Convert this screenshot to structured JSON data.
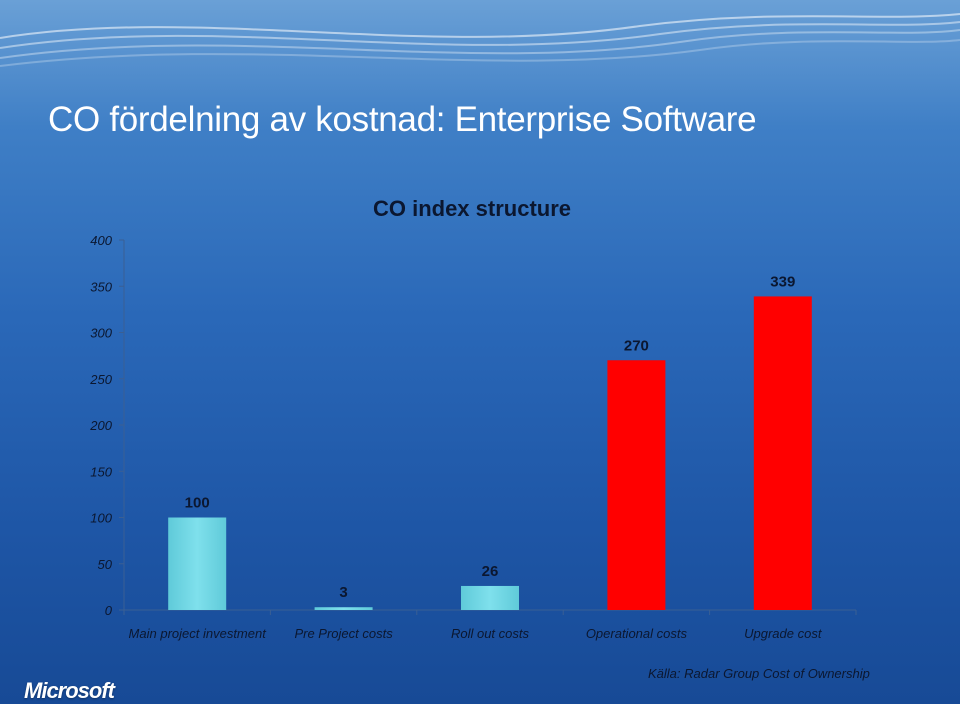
{
  "slide": {
    "title": "CO fördelning av kostnad: Enterprise Software",
    "source": "Källa:  Radar Group Cost of Ownership",
    "logo_text": "Microsoft"
  },
  "colors": {
    "cyan_bar": "#7fe0ec",
    "red_bar": "#ff0000"
  },
  "chart_data": {
    "type": "bar",
    "title": "CO index structure",
    "categories": [
      "Main project investment",
      "Pre Project costs",
      "Roll out costs",
      "Operational costs",
      "Upgrade cost"
    ],
    "values": [
      100,
      3,
      26,
      270,
      339
    ],
    "data_labels": [
      "100",
      "3",
      "26",
      "270",
      "339"
    ],
    "bar_colors": [
      "cyan",
      "cyan",
      "cyan",
      "red",
      "red"
    ],
    "ylim": [
      0,
      400
    ],
    "yticks": [
      0,
      50,
      100,
      150,
      200,
      250,
      300,
      350,
      400
    ],
    "ytick_labels": [
      "0",
      "50",
      "100",
      "150",
      "200",
      "250",
      "300",
      "350",
      "400"
    ],
    "xlabel": "",
    "ylabel": "",
    "grid": false
  }
}
